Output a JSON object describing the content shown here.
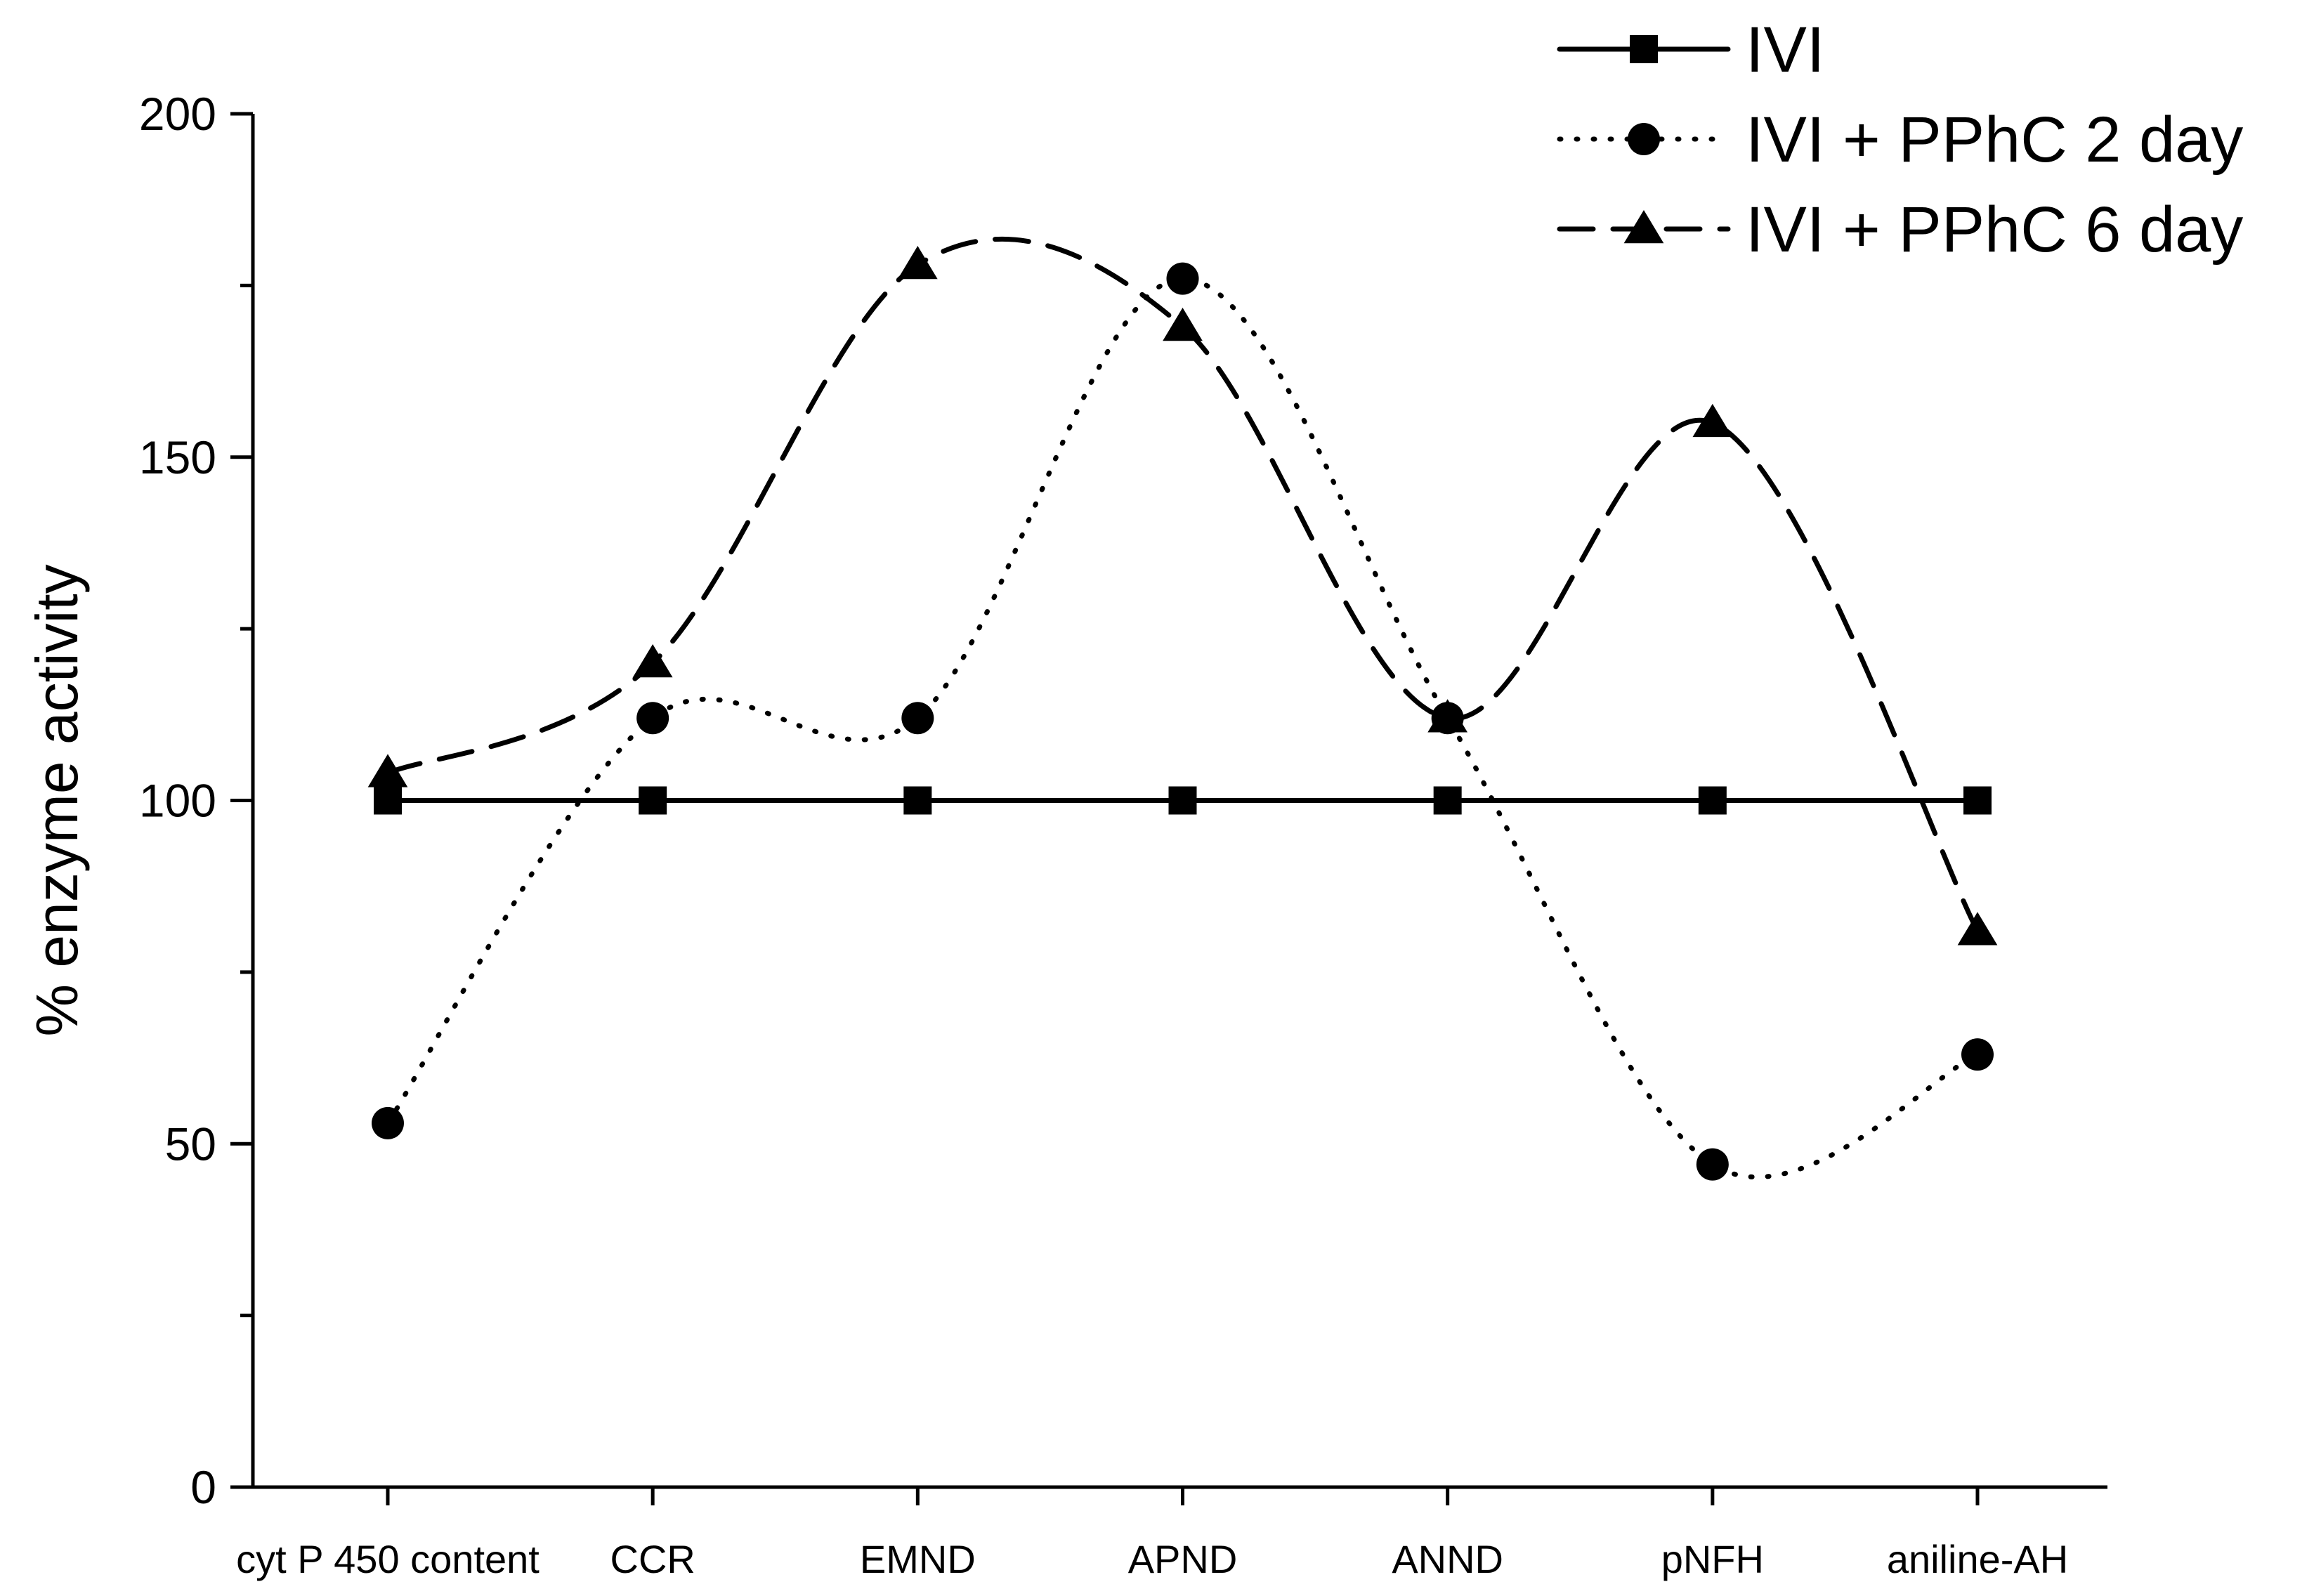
{
  "chart_data": {
    "type": "line",
    "title": "",
    "xlabel": "",
    "ylabel": "% enzyme activity",
    "ylim": [
      0,
      200
    ],
    "yticks": [
      0,
      50,
      100,
      150,
      200
    ],
    "grid": false,
    "legend_position": "top-right",
    "categories": [
      "cyt P 450 content",
      "CCR",
      "EMND",
      "APND",
      "ANND",
      "pNFH",
      "aniline-AH"
    ],
    "series": [
      {
        "name": "IVI",
        "values": [
          100,
          100,
          100,
          100,
          100,
          100,
          100
        ],
        "marker": "square",
        "line_style": "solid",
        "color": "#000000"
      },
      {
        "name": "IVI + PPhC 2 day",
        "values": [
          53,
          112,
          112,
          176,
          112,
          47,
          63
        ],
        "marker": "circle",
        "line_style": "dotted",
        "color": "#000000"
      },
      {
        "name": "IVI + PPhC 6 day",
        "values": [
          104,
          120,
          178,
          169,
          112,
          155,
          81
        ],
        "marker": "triangle",
        "line_style": "dashed",
        "color": "#000000"
      }
    ]
  }
}
